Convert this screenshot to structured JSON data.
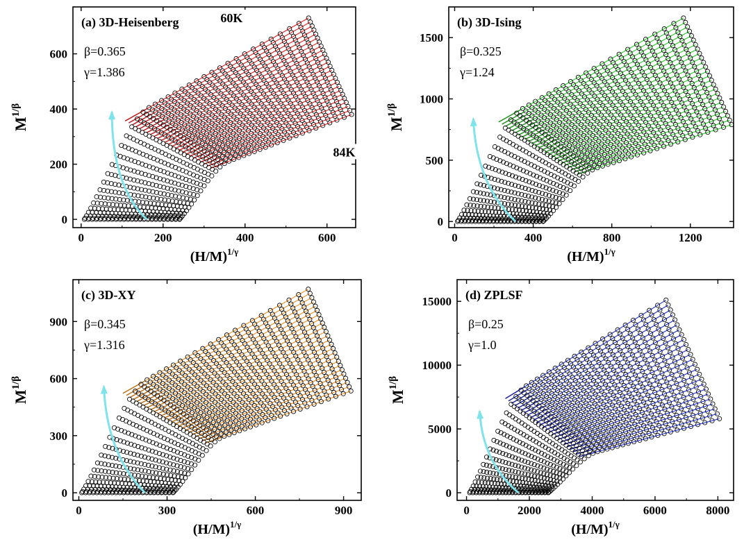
{
  "chart_data": [
    {
      "type": "scatter",
      "panel_label": "(a) 3D-Heisenberg",
      "beta_text": "β=0.365",
      "gamma_text": "γ=1.386",
      "xlabel": "(H/M)",
      "xlabel_sup": "1/γ",
      "ylabel": "M",
      "ylabel_sup": "1/β",
      "xlim": [
        -20,
        670
      ],
      "ylim": [
        -30,
        770
      ],
      "xticks": [
        0,
        200,
        400,
        600
      ],
      "yticks": [
        0,
        200,
        400,
        600
      ],
      "fit_color": "#e31a1c",
      "inner_color": "#b01818",
      "arrow_color": "#7fe3ec",
      "annotations": [
        {
          "text": "60K",
          "at": [
            340,
            715
          ]
        },
        {
          "text": "84K",
          "at": [
            615,
            228
          ]
        }
      ],
      "model": {
        "n": 25,
        "xStart": [
          8,
          240
        ],
        "xEnd": [
          555,
          660
        ],
        "yEnd": [
          730,
          380
        ]
      },
      "arrow": {
        "from": [
          160,
          0
        ],
        "ctrl": [
          75,
          120
        ],
        "to": [
          75,
          390
        ]
      }
    },
    {
      "type": "scatter",
      "panel_label": "(b)  3D-Ising",
      "beta_text": "β=0.325",
      "gamma_text": "γ=1.24",
      "xlabel": "(H/M)",
      "xlabel_sup": "1/γ",
      "ylabel": "M",
      "ylabel_sup": "1/β",
      "xlim": [
        -30,
        1420
      ],
      "ylim": [
        -50,
        1750
      ],
      "xticks": [
        0,
        400,
        800,
        1200
      ],
      "yticks": [
        0,
        500,
        1000,
        1500
      ],
      "fit_color": "#22cc22",
      "inner_color": "#128012",
      "arrow_color": "#7fe3ec",
      "annotations": [],
      "model": {
        "n": 25,
        "xStart": [
          15,
          450
        ],
        "xEnd": [
          1165,
          1410
        ],
        "yEnd": [
          1660,
          790
        ]
      },
      "arrow": {
        "from": [
          310,
          0
        ],
        "ctrl": [
          110,
          300
        ],
        "to": [
          95,
          840
        ]
      }
    },
    {
      "type": "scatter",
      "panel_label": "(c) 3D-XY",
      "beta_text": "β=0.345",
      "gamma_text": "γ=1.316",
      "xlabel": "(H/M)",
      "xlabel_sup": "1/γ",
      "ylabel": "M",
      "ylabel_sup": "1/β",
      "xlim": [
        -20,
        960
      ],
      "ylim": [
        -40,
        1120
      ],
      "xticks": [
        0,
        300,
        600,
        900
      ],
      "yticks": [
        0,
        300,
        600,
        900
      ],
      "fit_color": "#ee8e1a",
      "inner_color": "#a8620c",
      "arrow_color": "#7fe3ec",
      "annotations": [],
      "model": {
        "n": 25,
        "xStart": [
          10,
          320
        ],
        "xEnd": [
          780,
          925
        ],
        "yEnd": [
          1070,
          535
        ]
      },
      "arrow": {
        "from": [
          225,
          0
        ],
        "ctrl": [
          95,
          200
        ],
        "to": [
          85,
          560
        ]
      }
    },
    {
      "type": "scatter",
      "panel_label": "(d) ZPLSF",
      "beta_text": "β=0.25",
      "gamma_text": "γ=1.0",
      "xlabel": "(H/M)",
      "xlabel_sup": "1/γ",
      "ylabel": "M",
      "ylabel_sup": "1/β",
      "xlim": [
        -300,
        8500
      ],
      "ylim": [
        -600,
        16700
      ],
      "xticks": [
        0,
        2000,
        4000,
        6000,
        8000
      ],
      "yticks": [
        0,
        5000,
        10000,
        15000
      ],
      "fit_color": "#1a2bd6",
      "inner_color": "#141a8c",
      "arrow_color": "#7fe3ec",
      "annotations": [],
      "model": {
        "n": 25,
        "xStart": [
          100,
          2600
        ],
        "xEnd": [
          6350,
          8050
        ],
        "yEnd": [
          15100,
          5800
        ]
      },
      "arrow": {
        "from": [
          1650,
          0
        ],
        "ctrl": [
          500,
          2400
        ],
        "to": [
          420,
          6400
        ]
      }
    }
  ]
}
